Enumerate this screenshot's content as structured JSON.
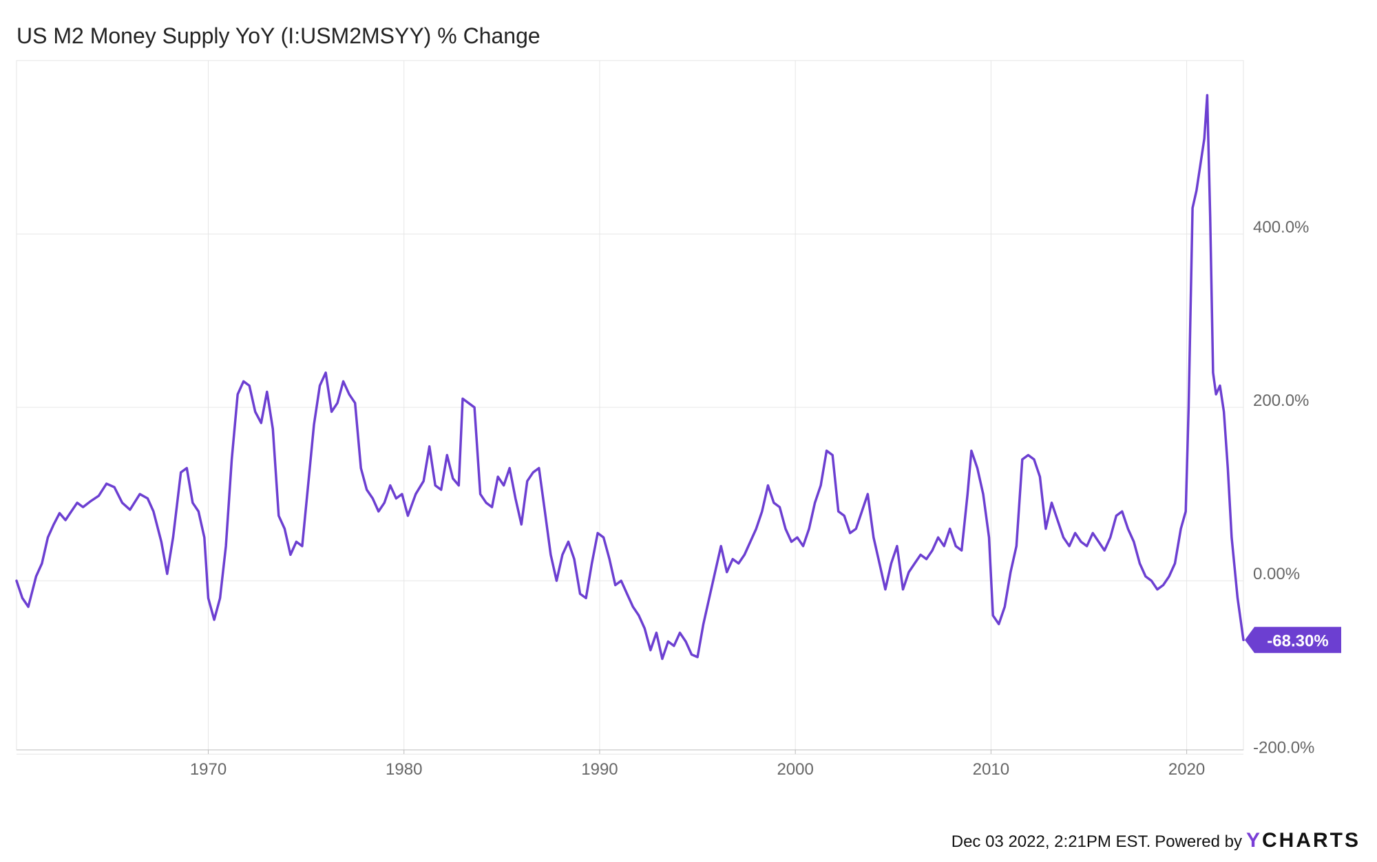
{
  "title": "US M2 Money Supply YoY (I:USM2MSYY) % Change",
  "footer": {
    "timestamp_text": "Dec 03 2022, 2:21PM EST.",
    "powered_text": "Powered by",
    "brand_first": "Y",
    "brand_rest": "CHARTS"
  },
  "colors": {
    "series": "#6c3fd1",
    "grid": "#e6e6e6",
    "axis_text": "#666666",
    "badge_bg": "#6c3fd1",
    "badge_text": "#ffffff"
  },
  "chart_data": {
    "type": "line",
    "title": "US M2 Money Supply YoY (I:USM2MSYY) % Change",
    "xlabel": "",
    "ylabel": "",
    "x_ticks": [
      "1970",
      "1980",
      "1990",
      "2000",
      "2010",
      "2020"
    ],
    "y_ticks": [
      "400.0%",
      "200.0%",
      "0.00%",
      "-200.0%"
    ],
    "y_tick_values": [
      400,
      200,
      0,
      -200
    ],
    "x_tick_values": [
      1970,
      1980,
      1990,
      2000,
      2010,
      2020
    ],
    "xlim": [
      1960.2,
      2022.9
    ],
    "ylim": [
      -195,
      600
    ],
    "grid": true,
    "last_value_label": "-68.30%",
    "series": [
      {
        "values": [
          [
            1960.2,
            0
          ],
          [
            1960.5,
            -20
          ],
          [
            1960.8,
            -30
          ],
          [
            1961.2,
            5
          ],
          [
            1961.5,
            20
          ],
          [
            1961.8,
            50
          ],
          [
            1962.1,
            65
          ],
          [
            1962.4,
            78
          ],
          [
            1962.7,
            70
          ],
          [
            1963.0,
            80
          ],
          [
            1963.3,
            90
          ],
          [
            1963.6,
            85
          ],
          [
            1964.0,
            92
          ],
          [
            1964.4,
            98
          ],
          [
            1964.8,
            112
          ],
          [
            1965.2,
            108
          ],
          [
            1965.6,
            90
          ],
          [
            1966.0,
            82
          ],
          [
            1966.5,
            100
          ],
          [
            1966.9,
            95
          ],
          [
            1967.2,
            80
          ],
          [
            1967.6,
            45
          ],
          [
            1967.9,
            8
          ],
          [
            1968.2,
            50
          ],
          [
            1968.6,
            125
          ],
          [
            1968.9,
            130
          ],
          [
            1969.2,
            90
          ],
          [
            1969.5,
            80
          ],
          [
            1969.8,
            50
          ],
          [
            1970.0,
            -20
          ],
          [
            1970.3,
            -45
          ],
          [
            1970.6,
            -20
          ],
          [
            1970.9,
            40
          ],
          [
            1971.2,
            140
          ],
          [
            1971.5,
            215
          ],
          [
            1971.8,
            230
          ],
          [
            1972.1,
            225
          ],
          [
            1972.4,
            195
          ],
          [
            1972.7,
            182
          ],
          [
            1973.0,
            218
          ],
          [
            1973.3,
            175
          ],
          [
            1973.6,
            75
          ],
          [
            1973.9,
            60
          ],
          [
            1974.2,
            30
          ],
          [
            1974.5,
            45
          ],
          [
            1974.8,
            40
          ],
          [
            1975.1,
            110
          ],
          [
            1975.4,
            180
          ],
          [
            1975.7,
            225
          ],
          [
            1976.0,
            240
          ],
          [
            1976.3,
            195
          ],
          [
            1976.6,
            205
          ],
          [
            1976.9,
            230
          ],
          [
            1977.2,
            215
          ],
          [
            1977.5,
            205
          ],
          [
            1977.8,
            130
          ],
          [
            1978.1,
            105
          ],
          [
            1978.4,
            95
          ],
          [
            1978.7,
            80
          ],
          [
            1979.0,
            90
          ],
          [
            1979.3,
            110
          ],
          [
            1979.6,
            95
          ],
          [
            1979.9,
            100
          ],
          [
            1980.2,
            75
          ],
          [
            1980.6,
            100
          ],
          [
            1981.0,
            115
          ],
          [
            1981.3,
            155
          ],
          [
            1981.6,
            110
          ],
          [
            1981.9,
            105
          ],
          [
            1982.2,
            145
          ],
          [
            1982.5,
            118
          ],
          [
            1982.8,
            110
          ],
          [
            1983.0,
            210
          ],
          [
            1983.3,
            205
          ],
          [
            1983.6,
            200
          ],
          [
            1983.9,
            100
          ],
          [
            1984.2,
            90
          ],
          [
            1984.5,
            85
          ],
          [
            1984.8,
            120
          ],
          [
            1985.1,
            110
          ],
          [
            1985.4,
            130
          ],
          [
            1985.7,
            95
          ],
          [
            1986.0,
            65
          ],
          [
            1986.3,
            115
          ],
          [
            1986.6,
            125
          ],
          [
            1986.9,
            130
          ],
          [
            1987.2,
            80
          ],
          [
            1987.5,
            30
          ],
          [
            1987.8,
            0
          ],
          [
            1988.1,
            30
          ],
          [
            1988.4,
            45
          ],
          [
            1988.7,
            25
          ],
          [
            1989.0,
            -15
          ],
          [
            1989.3,
            -20
          ],
          [
            1989.6,
            20
          ],
          [
            1989.9,
            55
          ],
          [
            1990.2,
            50
          ],
          [
            1990.5,
            25
          ],
          [
            1990.8,
            -5
          ],
          [
            1991.1,
            0
          ],
          [
            1991.4,
            -15
          ],
          [
            1991.7,
            -30
          ],
          [
            1992.0,
            -40
          ],
          [
            1992.3,
            -55
          ],
          [
            1992.6,
            -80
          ],
          [
            1992.9,
            -60
          ],
          [
            1993.2,
            -90
          ],
          [
            1993.5,
            -70
          ],
          [
            1993.8,
            -75
          ],
          [
            1994.1,
            -60
          ],
          [
            1994.4,
            -70
          ],
          [
            1994.7,
            -85
          ],
          [
            1995.0,
            -88
          ],
          [
            1995.3,
            -50
          ],
          [
            1995.6,
            -20
          ],
          [
            1995.9,
            10
          ],
          [
            1996.2,
            40
          ],
          [
            1996.5,
            10
          ],
          [
            1996.8,
            25
          ],
          [
            1997.1,
            20
          ],
          [
            1997.4,
            30
          ],
          [
            1997.7,
            45
          ],
          [
            1998.0,
            60
          ],
          [
            1998.3,
            80
          ],
          [
            1998.6,
            110
          ],
          [
            1998.9,
            90
          ],
          [
            1999.2,
            85
          ],
          [
            1999.5,
            60
          ],
          [
            1999.8,
            45
          ],
          [
            2000.1,
            50
          ],
          [
            2000.4,
            40
          ],
          [
            2000.7,
            60
          ],
          [
            2001.0,
            90
          ],
          [
            2001.3,
            110
          ],
          [
            2001.6,
            150
          ],
          [
            2001.9,
            145
          ],
          [
            2002.2,
            80
          ],
          [
            2002.5,
            75
          ],
          [
            2002.8,
            55
          ],
          [
            2003.1,
            60
          ],
          [
            2003.4,
            80
          ],
          [
            2003.7,
            100
          ],
          [
            2004.0,
            50
          ],
          [
            2004.3,
            20
          ],
          [
            2004.6,
            -10
          ],
          [
            2004.9,
            20
          ],
          [
            2005.2,
            40
          ],
          [
            2005.5,
            -10
          ],
          [
            2005.8,
            10
          ],
          [
            2006.1,
            20
          ],
          [
            2006.4,
            30
          ],
          [
            2006.7,
            25
          ],
          [
            2007.0,
            35
          ],
          [
            2007.3,
            50
          ],
          [
            2007.6,
            40
          ],
          [
            2007.9,
            60
          ],
          [
            2008.2,
            40
          ],
          [
            2008.5,
            35
          ],
          [
            2008.8,
            100
          ],
          [
            2009.0,
            150
          ],
          [
            2009.3,
            130
          ],
          [
            2009.6,
            100
          ],
          [
            2009.9,
            50
          ],
          [
            2010.1,
            -40
          ],
          [
            2010.4,
            -50
          ],
          [
            2010.7,
            -30
          ],
          [
            2011.0,
            10
          ],
          [
            2011.3,
            40
          ],
          [
            2011.6,
            140
          ],
          [
            2011.9,
            145
          ],
          [
            2012.2,
            140
          ],
          [
            2012.5,
            120
          ],
          [
            2012.8,
            60
          ],
          [
            2013.1,
            90
          ],
          [
            2013.4,
            70
          ],
          [
            2013.7,
            50
          ],
          [
            2014.0,
            40
          ],
          [
            2014.3,
            55
          ],
          [
            2014.6,
            45
          ],
          [
            2014.9,
            40
          ],
          [
            2015.2,
            55
          ],
          [
            2015.5,
            45
          ],
          [
            2015.8,
            35
          ],
          [
            2016.1,
            50
          ],
          [
            2016.4,
            75
          ],
          [
            2016.7,
            80
          ],
          [
            2017.0,
            60
          ],
          [
            2017.3,
            45
          ],
          [
            2017.6,
            20
          ],
          [
            2017.9,
            5
          ],
          [
            2018.2,
            0
          ],
          [
            2018.5,
            -10
          ],
          [
            2018.8,
            -5
          ],
          [
            2019.1,
            5
          ],
          [
            2019.4,
            20
          ],
          [
            2019.7,
            60
          ],
          [
            2019.95,
            80
          ],
          [
            2020.1,
            200
          ],
          [
            2020.3,
            430
          ],
          [
            2020.5,
            450
          ],
          [
            2020.7,
            480
          ],
          [
            2020.9,
            510
          ],
          [
            2021.05,
            560
          ],
          [
            2021.2,
            420
          ],
          [
            2021.35,
            240
          ],
          [
            2021.5,
            215
          ],
          [
            2021.7,
            225
          ],
          [
            2021.9,
            195
          ],
          [
            2022.1,
            130
          ],
          [
            2022.3,
            50
          ],
          [
            2022.6,
            -20
          ],
          [
            2022.9,
            -68.3
          ]
        ]
      }
    ]
  }
}
